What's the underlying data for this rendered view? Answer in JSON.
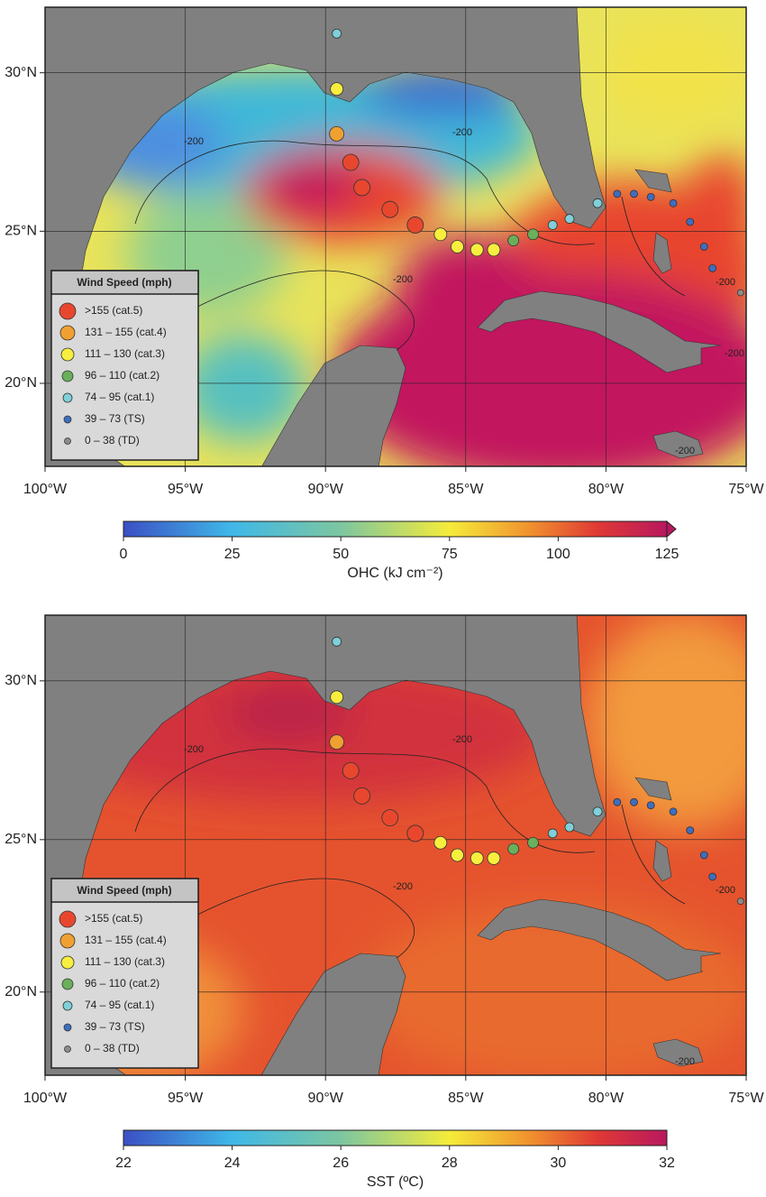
{
  "panels": [
    {
      "xlim": [
        -100,
        -75
      ],
      "ylim": [
        17.2,
        32.0
      ],
      "lonticks": [
        {
          "value": -100,
          "label": "100°W"
        },
        {
          "value": -95,
          "label": "95°W"
        },
        {
          "value": -90,
          "label": "90°W"
        },
        {
          "value": -85,
          "label": "85°W"
        },
        {
          "value": -80,
          "label": "80°W"
        },
        {
          "value": -75,
          "label": "75°W"
        }
      ],
      "latticks": [
        {
          "value": 20,
          "label": "20°N"
        },
        {
          "value": 25,
          "label": "25°N"
        },
        {
          "value": 30,
          "label": "30°N"
        }
      ],
      "contour_labels": [
        "-200",
        "-200",
        "-200",
        "-200",
        "-200",
        "-200"
      ],
      "legend": {
        "title": "Wind Speed (mph)",
        "items": [
          {
            "label": ">155 (cat.5)",
            "color": "#e8472e"
          },
          {
            "label": "131 – 155 (cat.4)",
            "color": "#f0a030"
          },
          {
            "label": "111 – 130 (cat.3)",
            "color": "#f7ee3e"
          },
          {
            "label": "96 – 110 (cat.2)",
            "color": "#6aaf5a"
          },
          {
            "label": "74 – 95 (cat.1)",
            "color": "#7fd0d8"
          },
          {
            "label": "39 – 73 (TS)",
            "color": "#3e6ec0"
          },
          {
            "label": "0 – 38 (TD)",
            "color": "#8c8c8c"
          }
        ]
      },
      "colorbar": {
        "label": "OHC (kJ cm⁻²)",
        "lim": [
          0,
          125
        ],
        "ticks": [
          0,
          25,
          50,
          75,
          100,
          125
        ]
      }
    },
    {
      "xlim": [
        -100,
        -75
      ],
      "ylim": [
        17.2,
        32.0
      ],
      "lonticks": [
        {
          "value": -100,
          "label": "100°W"
        },
        {
          "value": -95,
          "label": "95°W"
        },
        {
          "value": -90,
          "label": "90°W"
        },
        {
          "value": -85,
          "label": "85°W"
        },
        {
          "value": -80,
          "label": "80°W"
        },
        {
          "value": -75,
          "label": "75°W"
        }
      ],
      "latticks": [
        {
          "value": 20,
          "label": "20°N"
        },
        {
          "value": 25,
          "label": "25°N"
        },
        {
          "value": 30,
          "label": "30°N"
        }
      ],
      "contour_labels": [
        "-200",
        "-200",
        "-200",
        "-200",
        "-200"
      ],
      "legend": {
        "title": "Wind Speed (mph)",
        "items": [
          {
            "label": ">155 (cat.5)",
            "color": "#e8472e"
          },
          {
            "label": "131 – 155 (cat.4)",
            "color": "#f0a030"
          },
          {
            "label": "111 – 130 (cat.3)",
            "color": "#f7ee3e"
          },
          {
            "label": "96 – 110 (cat.2)",
            "color": "#6aaf5a"
          },
          {
            "label": "74 – 95 (cat.1)",
            "color": "#7fd0d8"
          },
          {
            "label": "39 – 73 (TS)",
            "color": "#3e6ec0"
          },
          {
            "label": "0 – 38 (TD)",
            "color": "#8c8c8c"
          }
        ]
      },
      "colorbar": {
        "label": "SST (ºC)",
        "lim": [
          22,
          32
        ],
        "ticks": [
          22,
          24,
          26,
          28,
          30,
          32
        ]
      }
    }
  ],
  "track": [
    {
      "lon": -89.6,
      "lat": 31.2,
      "category": "74 – 95 (cat.1)"
    },
    {
      "lon": -89.6,
      "lat": 29.5,
      "category": "111 – 130 (cat.3)"
    },
    {
      "lon": -89.6,
      "lat": 28.1,
      "category": "131 – 155 (cat.4)"
    },
    {
      "lon": -89.1,
      "lat": 27.2,
      "category": ">155 (cat.5)"
    },
    {
      "lon": -88.7,
      "lat": 26.4,
      "category": ">155 (cat.5)"
    },
    {
      "lon": -87.7,
      "lat": 25.7,
      "category": ">155 (cat.5)"
    },
    {
      "lon": -86.8,
      "lat": 25.2,
      "category": ">155 (cat.5)"
    },
    {
      "lon": -85.9,
      "lat": 24.9,
      "category": "111 – 130 (cat.3)"
    },
    {
      "lon": -85.3,
      "lat": 24.5,
      "category": "111 – 130 (cat.3)"
    },
    {
      "lon": -84.6,
      "lat": 24.4,
      "category": "111 – 130 (cat.3)"
    },
    {
      "lon": -84.0,
      "lat": 24.4,
      "category": "111 – 130 (cat.3)"
    },
    {
      "lon": -83.3,
      "lat": 24.7,
      "category": "96 – 110 (cat.2)"
    },
    {
      "lon": -82.6,
      "lat": 24.9,
      "category": "96 – 110 (cat.2)"
    },
    {
      "lon": -81.9,
      "lat": 25.2,
      "category": "74 – 95 (cat.1)"
    },
    {
      "lon": -81.3,
      "lat": 25.4,
      "category": "74 – 95 (cat.1)"
    },
    {
      "lon": -80.3,
      "lat": 25.9,
      "category": "74 – 95 (cat.1)"
    },
    {
      "lon": -79.6,
      "lat": 26.2,
      "category": "39 – 73 (TS)"
    },
    {
      "lon": -79.0,
      "lat": 26.2,
      "category": "39 – 73 (TS)"
    },
    {
      "lon": -78.4,
      "lat": 26.1,
      "category": "39 – 73 (TS)"
    },
    {
      "lon": -77.6,
      "lat": 25.9,
      "category": "39 – 73 (TS)"
    },
    {
      "lon": -77.0,
      "lat": 25.3,
      "category": "39 – 73 (TS)"
    },
    {
      "lon": -76.5,
      "lat": 24.5,
      "category": "39 – 73 (TS)"
    },
    {
      "lon": -76.2,
      "lat": 23.8,
      "category": "39 – 73 (TS)"
    },
    {
      "lon": -75.2,
      "lat": 23.0,
      "category": "0 – 38 (TD)"
    }
  ]
}
